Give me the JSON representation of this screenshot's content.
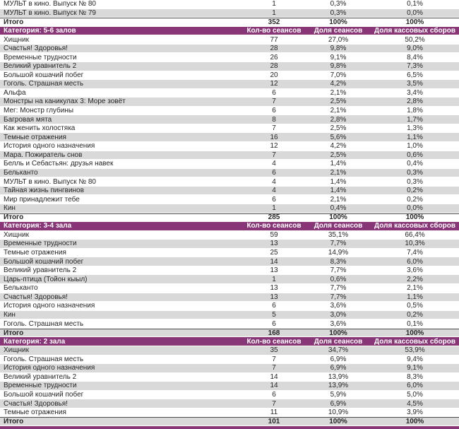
{
  "colors": {
    "category_header_bg": "#883677",
    "banded_row_bg": "#d9d9d9",
    "plain_row_bg": "#ffffff",
    "header_text": "#ffffff",
    "body_text": "#262626",
    "total_row_top_border": "#4a4a4a"
  },
  "table": {
    "column_headers": [
      "Кол-во сеансов",
      "Доля сеансов",
      "Доля кассовых сборов"
    ],
    "sections": [
      {
        "header": null,
        "rows": [
          {
            "title": "МУЛЬТ в кино. Выпуск № 80",
            "sessions": "1",
            "sessions_share": "0,3%",
            "boxoffice_share": "0,1%"
          },
          {
            "title": "МУЛЬТ в кино. Выпуск № 79",
            "sessions": "1",
            "sessions_share": "0,3%",
            "boxoffice_share": "0,0%"
          }
        ],
        "total": {
          "label": "Итого",
          "sessions": "352",
          "sessions_share": "100%",
          "boxoffice_share": "100%"
        }
      },
      {
        "header": "Категория: 5-6 залов",
        "rows": [
          {
            "title": "Хищник",
            "sessions": "77",
            "sessions_share": "27,0%",
            "boxoffice_share": "50,2%"
          },
          {
            "title": "Счастья! Здоровья!",
            "sessions": "28",
            "sessions_share": "9,8%",
            "boxoffice_share": "9,0%"
          },
          {
            "title": "Временные трудности",
            "sessions": "26",
            "sessions_share": "9,1%",
            "boxoffice_share": "8,4%"
          },
          {
            "title": "Великий уравнитель 2",
            "sessions": "28",
            "sessions_share": "9,8%",
            "boxoffice_share": "7,3%"
          },
          {
            "title": "Большой кошачий побег",
            "sessions": "20",
            "sessions_share": "7,0%",
            "boxoffice_share": "6,5%"
          },
          {
            "title": "Гоголь. Страшная месть",
            "sessions": "12",
            "sessions_share": "4,2%",
            "boxoffice_share": "3,5%"
          },
          {
            "title": "Альфа",
            "sessions": "6",
            "sessions_share": "2,1%",
            "boxoffice_share": "3,4%"
          },
          {
            "title": "Монстры на каникулах 3: Море зовёт",
            "sessions": "7",
            "sessions_share": "2,5%",
            "boxoffice_share": "2,8%"
          },
          {
            "title": "Мег: Монстр глубины",
            "sessions": "6",
            "sessions_share": "2,1%",
            "boxoffice_share": "1,8%"
          },
          {
            "title": "Багровая мята",
            "sessions": "8",
            "sessions_share": "2,8%",
            "boxoffice_share": "1,7%"
          },
          {
            "title": "Как женить холостяка",
            "sessions": "7",
            "sessions_share": "2,5%",
            "boxoffice_share": "1,3%"
          },
          {
            "title": "Темные отражения",
            "sessions": "16",
            "sessions_share": "5,6%",
            "boxoffice_share": "1,1%"
          },
          {
            "title": "История одного назначения",
            "sessions": "12",
            "sessions_share": "4,2%",
            "boxoffice_share": "1,0%"
          },
          {
            "title": "Мара. Пожиратель снов",
            "sessions": "7",
            "sessions_share": "2,5%",
            "boxoffice_share": "0,6%"
          },
          {
            "title": "Белль и Себастьян: друзья навек",
            "sessions": "4",
            "sessions_share": "1,4%",
            "boxoffice_share": "0,4%"
          },
          {
            "title": "Бельканто",
            "sessions": "6",
            "sessions_share": "2,1%",
            "boxoffice_share": "0,3%"
          },
          {
            "title": "МУЛЬТ в кино. Выпуск № 80",
            "sessions": "4",
            "sessions_share": "1,4%",
            "boxoffice_share": "0,3%"
          },
          {
            "title": "Тайная жизнь пингвинов",
            "sessions": "4",
            "sessions_share": "1,4%",
            "boxoffice_share": "0,2%"
          },
          {
            "title": "Мир принадлежит тебе",
            "sessions": "6",
            "sessions_share": "2,1%",
            "boxoffice_share": "0,2%"
          },
          {
            "title": "Кин",
            "sessions": "1",
            "sessions_share": "0,4%",
            "boxoffice_share": "0,0%"
          }
        ],
        "total": {
          "label": "Итого",
          "sessions": "285",
          "sessions_share": "100%",
          "boxoffice_share": "100%"
        }
      },
      {
        "header": "Категория: 3-4 зала",
        "rows": [
          {
            "title": "Хищник",
            "sessions": "59",
            "sessions_share": "35,1%",
            "boxoffice_share": "66,4%"
          },
          {
            "title": "Временные трудности",
            "sessions": "13",
            "sessions_share": "7,7%",
            "boxoffice_share": "10,3%"
          },
          {
            "title": "Темные отражения",
            "sessions": "25",
            "sessions_share": "14,9%",
            "boxoffice_share": "7,4%"
          },
          {
            "title": "Большой кошачий побег",
            "sessions": "14",
            "sessions_share": "8,3%",
            "boxoffice_share": "6,0%"
          },
          {
            "title": "Великий уравнитель 2",
            "sessions": "13",
            "sessions_share": "7,7%",
            "boxoffice_share": "3,6%"
          },
          {
            "title": "Царь-птица (Тойон кыыл)",
            "sessions": "1",
            "sessions_share": "0,6%",
            "boxoffice_share": "2,2%"
          },
          {
            "title": "Бельканто",
            "sessions": "13",
            "sessions_share": "7,7%",
            "boxoffice_share": "2,1%"
          },
          {
            "title": "Счастья! Здоровья!",
            "sessions": "13",
            "sessions_share": "7,7%",
            "boxoffice_share": "1,1%"
          },
          {
            "title": "История одного назначения",
            "sessions": "6",
            "sessions_share": "3,6%",
            "boxoffice_share": "0,5%"
          },
          {
            "title": "Кин",
            "sessions": "5",
            "sessions_share": "3,0%",
            "boxoffice_share": "0,2%"
          },
          {
            "title": "Гоголь. Страшная месть",
            "sessions": "6",
            "sessions_share": "3,6%",
            "boxoffice_share": "0,1%"
          }
        ],
        "total": {
          "label": "Итого",
          "sessions": "168",
          "sessions_share": "100%",
          "boxoffice_share": "100%"
        }
      },
      {
        "header": "Категория: 2 зала",
        "rows": [
          {
            "title": "Хищник",
            "sessions": "35",
            "sessions_share": "34,7%",
            "boxoffice_share": "53,9%"
          },
          {
            "title": "Гоголь. Страшная месть",
            "sessions": "7",
            "sessions_share": "6,9%",
            "boxoffice_share": "9,4%"
          },
          {
            "title": "История одного назначения",
            "sessions": "7",
            "sessions_share": "6,9%",
            "boxoffice_share": "9,1%"
          },
          {
            "title": "Великий уравнитель 2",
            "sessions": "14",
            "sessions_share": "13,9%",
            "boxoffice_share": "8,3%"
          },
          {
            "title": "Временные трудности",
            "sessions": "14",
            "sessions_share": "13,9%",
            "boxoffice_share": "6,0%"
          },
          {
            "title": "Большой кошачий побег",
            "sessions": "6",
            "sessions_share": "5,9%",
            "boxoffice_share": "5,0%"
          },
          {
            "title": "Счастья! Здоровья!",
            "sessions": "7",
            "sessions_share": "6,9%",
            "boxoffice_share": "4,5%"
          },
          {
            "title": "Темные отражения",
            "sessions": "11",
            "sessions_share": "10,9%",
            "boxoffice_share": "3,9%"
          }
        ],
        "total": {
          "label": "Итого",
          "sessions": "101",
          "sessions_share": "100%",
          "boxoffice_share": "100%"
        }
      }
    ]
  }
}
